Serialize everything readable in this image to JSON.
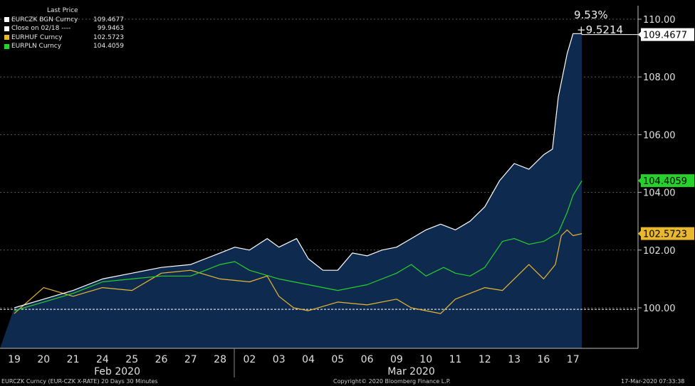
{
  "legend": {
    "header": "Last Price",
    "items": [
      {
        "name": "EURCZK BGN Curncy",
        "value": "109.4677",
        "color": "#ffffff"
      },
      {
        "name": "Close on 02/18 ----",
        "value": "99.9463",
        "color": "#ffffff"
      },
      {
        "name": "EURHUF Curncy",
        "value": "102.5723",
        "color": "#e8b730"
      },
      {
        "name": "EURPLN Curncy",
        "value": "104.4059",
        "color": "#25d12a"
      }
    ]
  },
  "change": {
    "pct": "9.53%",
    "abs": "+9.5214"
  },
  "footer": {
    "left": "EURCZK Curncy (EUR-CZK X-RATE) 20 Days 30 Minutes",
    "center": "Copyright© 2020 Bloomberg Finance L.P.",
    "right": "17-Mar-2020 07:33:38"
  },
  "chart_data": {
    "type": "area",
    "x_unit": "trading day (30-minute bars)",
    "x": [
      "19",
      "20",
      "21",
      "24",
      "25",
      "26",
      "27",
      "28",
      "02",
      "03",
      "04",
      "05",
      "06",
      "09",
      "10",
      "11",
      "12",
      "13",
      "16",
      "17"
    ],
    "month_labels": [
      {
        "label": "Feb 2020",
        "from": "19",
        "to": "28"
      },
      {
        "label": "Mar 2020",
        "from": "02",
        "to": "17"
      }
    ],
    "yticks": [
      100.0,
      102.0,
      104.0,
      106.0,
      108.0,
      110.0
    ],
    "ylim": [
      98.7,
      110.9
    ],
    "y_axis_side": "right",
    "grid": true,
    "reference_line": {
      "name": "Close on 02/18",
      "value": 99.9463
    },
    "last_value_labels": [
      {
        "series": "EURCZK",
        "text": "109.4677",
        "value": 109.4677,
        "bg": "#ffffff",
        "fg": "#000000"
      },
      {
        "series": "EURPLN",
        "text": "104.4059",
        "value": 104.4059,
        "bg": "#25d12a",
        "fg": "#000000"
      },
      {
        "series": "EURHUF",
        "text": "102.5723",
        "value": 102.5723,
        "bg": "#e8b730",
        "fg": "#000000"
      }
    ],
    "series": [
      {
        "name": "EURCZK BGN Curncy",
        "color": "#ffffff",
        "fill": "#0f2a4f",
        "points": [
          [
            0,
            100.0
          ],
          [
            1,
            100.3
          ],
          [
            2,
            100.6
          ],
          [
            3,
            101.0
          ],
          [
            4,
            101.2
          ],
          [
            5,
            101.4
          ],
          [
            6,
            101.5
          ],
          [
            6.5,
            101.7
          ],
          [
            7,
            101.9
          ],
          [
            7.5,
            102.1
          ],
          [
            8,
            102.0
          ],
          [
            8.6,
            102.4
          ],
          [
            9,
            102.1
          ],
          [
            9.6,
            102.4
          ],
          [
            10,
            101.7
          ],
          [
            10.5,
            101.3
          ],
          [
            11,
            101.3
          ],
          [
            11.5,
            101.9
          ],
          [
            12,
            101.8
          ],
          [
            12.5,
            102.0
          ],
          [
            13,
            102.1
          ],
          [
            13.5,
            102.4
          ],
          [
            14,
            102.7
          ],
          [
            14.5,
            102.9
          ],
          [
            15,
            102.7
          ],
          [
            15.5,
            103.0
          ],
          [
            16,
            103.5
          ],
          [
            16.5,
            104.4
          ],
          [
            17,
            105.0
          ],
          [
            17.5,
            104.8
          ],
          [
            18,
            105.3
          ],
          [
            18.3,
            105.5
          ],
          [
            18.5,
            107.3
          ],
          [
            18.8,
            108.8
          ],
          [
            19,
            109.5
          ],
          [
            19.3,
            109.5
          ]
        ]
      },
      {
        "name": "EURPLN Curncy",
        "color": "#25d12a",
        "points": [
          [
            0,
            99.9
          ],
          [
            1,
            100.2
          ],
          [
            2,
            100.5
          ],
          [
            3,
            100.9
          ],
          [
            4,
            101.0
          ],
          [
            5,
            101.1
          ],
          [
            6,
            101.1
          ],
          [
            7,
            101.5
          ],
          [
            7.5,
            101.6
          ],
          [
            8,
            101.3
          ],
          [
            9,
            101.0
          ],
          [
            10,
            100.8
          ],
          [
            11,
            100.6
          ],
          [
            12,
            100.8
          ],
          [
            13,
            101.2
          ],
          [
            13.5,
            101.5
          ],
          [
            14,
            101.1
          ],
          [
            14.6,
            101.4
          ],
          [
            15,
            101.2
          ],
          [
            15.5,
            101.1
          ],
          [
            16,
            101.4
          ],
          [
            16.6,
            102.3
          ],
          [
            17,
            102.4
          ],
          [
            17.5,
            102.2
          ],
          [
            18,
            102.3
          ],
          [
            18.5,
            102.6
          ],
          [
            18.8,
            103.3
          ],
          [
            19,
            103.9
          ],
          [
            19.3,
            104.4
          ]
        ]
      },
      {
        "name": "EURHUF Curncy",
        "color": "#e8b730",
        "points": [
          [
            0,
            99.8
          ],
          [
            1,
            100.7
          ],
          [
            2,
            100.4
          ],
          [
            3,
            100.7
          ],
          [
            4,
            100.6
          ],
          [
            5,
            101.2
          ],
          [
            6,
            101.3
          ],
          [
            7,
            101.0
          ],
          [
            8,
            100.9
          ],
          [
            8.6,
            101.1
          ],
          [
            9,
            100.4
          ],
          [
            9.5,
            100.0
          ],
          [
            10,
            99.9
          ],
          [
            11,
            100.2
          ],
          [
            12,
            100.1
          ],
          [
            13,
            100.3
          ],
          [
            13.5,
            100.0
          ],
          [
            14,
            99.9
          ],
          [
            14.5,
            99.8
          ],
          [
            15,
            100.3
          ],
          [
            15.5,
            100.5
          ],
          [
            16,
            100.7
          ],
          [
            16.6,
            100.6
          ],
          [
            17,
            101.0
          ],
          [
            17.5,
            101.5
          ],
          [
            18,
            101.0
          ],
          [
            18.4,
            101.5
          ],
          [
            18.6,
            102.5
          ],
          [
            18.8,
            102.7
          ],
          [
            19,
            102.5
          ],
          [
            19.3,
            102.57
          ]
        ]
      }
    ]
  }
}
